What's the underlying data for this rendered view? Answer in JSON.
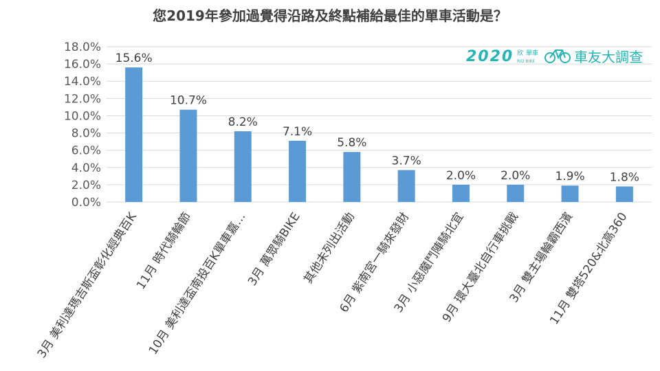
{
  "chart_data": {
    "type": "bar",
    "title": "您2019年參加過覺得沿路及終點補給最佳的單車活動是？",
    "categories": [
      "3月 美利達瑪吉斯盃彰化經典百K",
      "11月 時代騎輪節",
      "10月 美利達盃南投百K單車嘉…",
      "3月 萬眾騎BIKE",
      "其他未列出活動",
      "6月 紫南宮一騎來發財",
      "3月 小惡魔鬥陣騎北宜",
      "9月 環大臺北自行車挑戰",
      "3月 雙主場輪霸西濱",
      "11月 雙塔520&北高360"
    ],
    "values": [
      15.6,
      10.7,
      8.2,
      7.1,
      5.8,
      3.7,
      2.0,
      2.0,
      1.9,
      1.8
    ],
    "data_labels": [
      "15.6%",
      "10.7%",
      "8.2%",
      "7.1%",
      "5.8%",
      "3.7%",
      "2.0%",
      "2.0%",
      "1.9%",
      "1.8%"
    ],
    "yticks": [
      "0.0%",
      "2.0%",
      "4.0%",
      "6.0%",
      "8.0%",
      "10.0%",
      "12.0%",
      "14.0%",
      "16.0%",
      "18.0%"
    ],
    "ylim": [
      0,
      18
    ],
    "grid": true,
    "bar_color": "#5b9bd5"
  },
  "logo": {
    "year": "2020",
    "brand_top": "欣",
    "brand_mid": "單車",
    "brand_sub": "RID BIKE",
    "icon": "bicycle-icon",
    "text": "車友大調查",
    "color": "#26b5b5"
  }
}
